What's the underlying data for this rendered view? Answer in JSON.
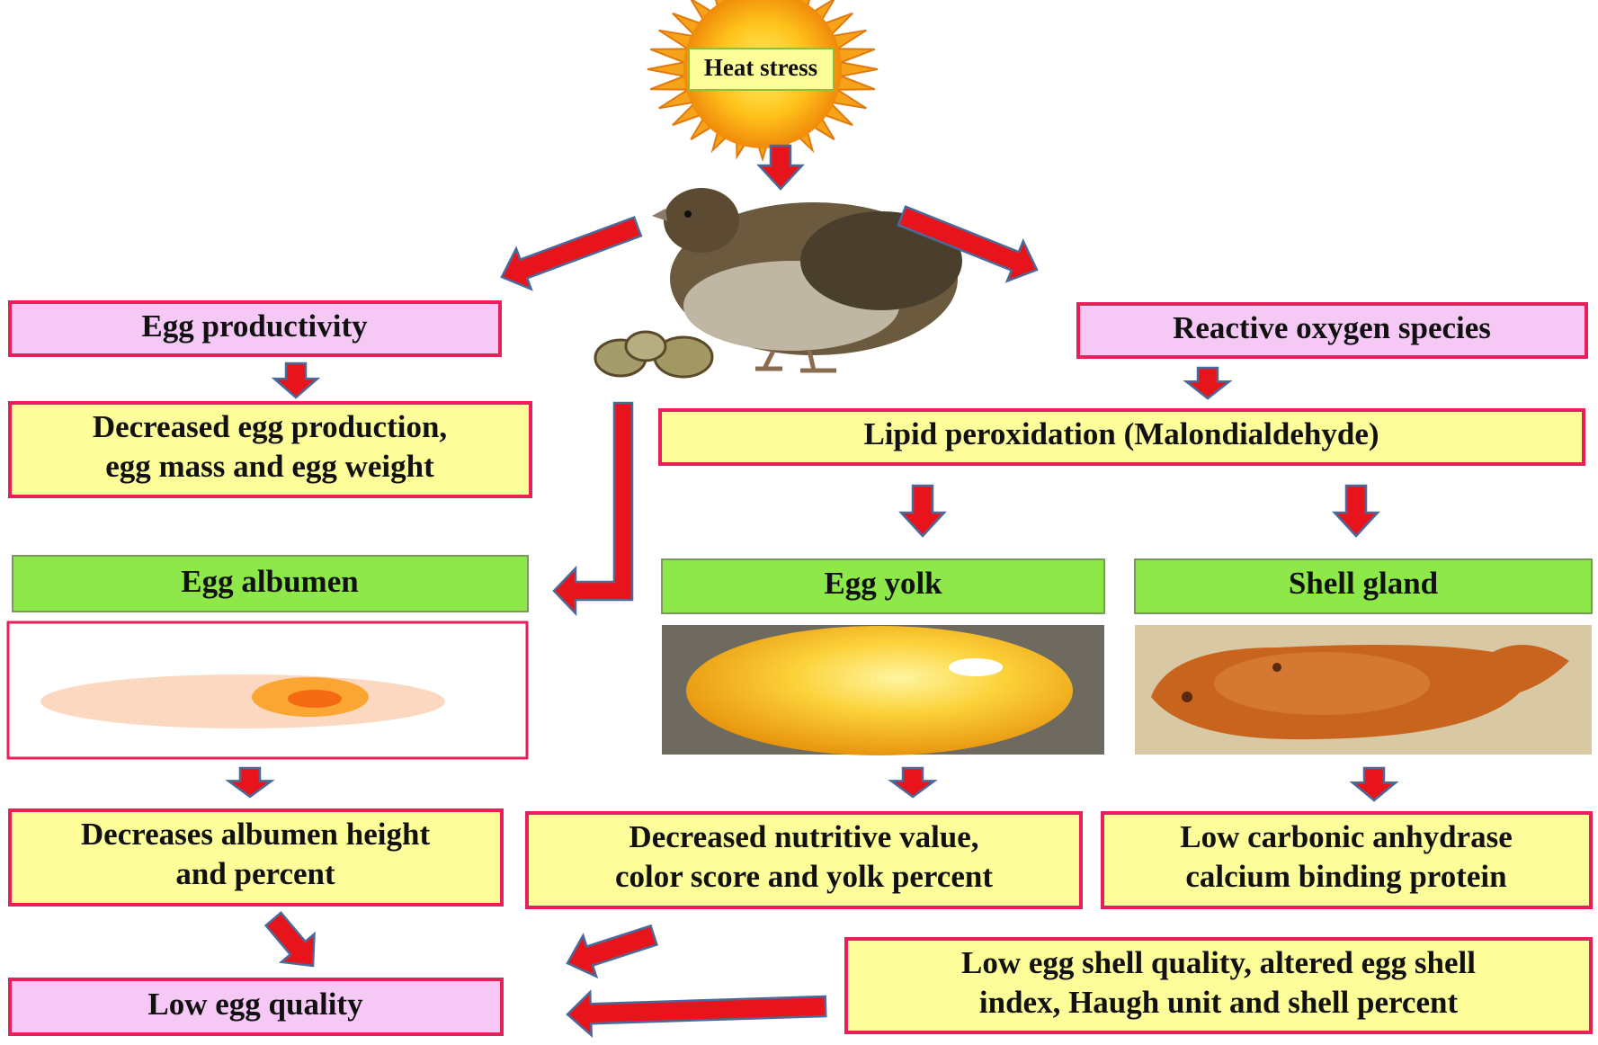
{
  "heat_stress": "Heat stress",
  "nodes": [
    {
      "id": "egg_productivity",
      "lines": [
        "Egg productivity"
      ]
    },
    {
      "id": "ros",
      "lines": [
        "Reactive oxygen species"
      ]
    },
    {
      "id": "decreased_production",
      "lines": [
        "Decreased egg production,",
        "egg mass and egg weight"
      ]
    },
    {
      "id": "lipid",
      "lines": [
        "Lipid peroxidation (Malondialdehyde)"
      ]
    },
    {
      "id": "albumen",
      "lines": [
        "Egg albumen"
      ]
    },
    {
      "id": "yolk",
      "lines": [
        "Egg yolk"
      ]
    },
    {
      "id": "shell_gland",
      "lines": [
        "Shell gland"
      ]
    },
    {
      "id": "albumen_effect",
      "lines": [
        "Decreases albumen height",
        "and percent"
      ]
    },
    {
      "id": "yolk_effect",
      "lines": [
        "Decreased nutritive value,",
        "color score and yolk percent"
      ]
    },
    {
      "id": "shell_effect",
      "lines": [
        "Low carbonic anhydrase",
        "calcium binding protein"
      ]
    },
    {
      "id": "shell_quality",
      "lines": [
        "Low egg shell quality, altered egg shell",
        "index, Haugh unit and shell percent"
      ]
    },
    {
      "id": "low_quality",
      "lines": [
        "Low egg quality"
      ]
    }
  ]
}
